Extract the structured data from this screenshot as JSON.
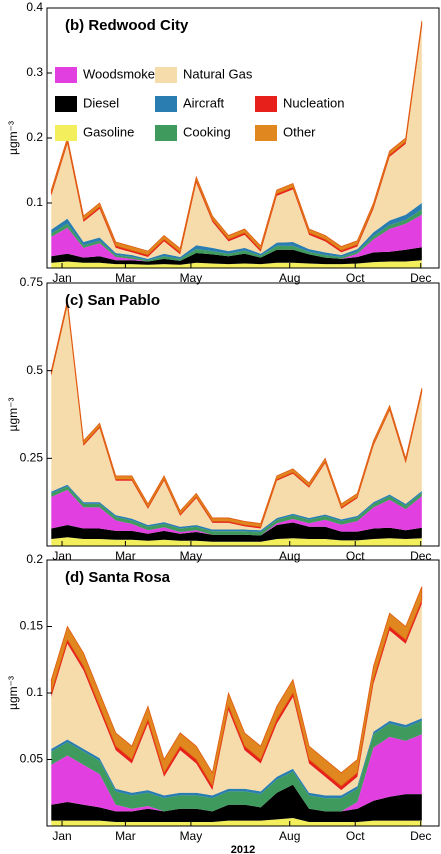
{
  "chart_data": [
    {
      "type": "area",
      "stacked": true,
      "legend": true,
      "title": "(b) Redwood City",
      "ylabel": "µgm⁻³",
      "x": [
        5,
        20,
        35,
        50,
        65,
        80,
        95,
        110,
        125,
        140,
        155,
        170,
        185,
        200,
        215,
        230,
        245,
        260,
        275,
        290,
        305,
        320,
        335,
        350
      ],
      "xlim": [
        1,
        366
      ],
      "xticks": [
        {
          "value": 15,
          "label": "Jan"
        },
        {
          "value": 74,
          "label": "Mar"
        },
        {
          "value": 135,
          "label": "May"
        },
        {
          "value": 227,
          "label": "Aug"
        },
        {
          "value": 288,
          "label": "Oct"
        },
        {
          "value": 349,
          "label": "Dec"
        }
      ],
      "ylim": [
        0,
        0.4
      ],
      "yticks": [
        0.1,
        0.2,
        0.3,
        0.4
      ],
      "series": [
        {
          "name": "Gasoline",
          "color": "#f2ee5c",
          "values": [
            0.008,
            0.01,
            0.008,
            0.008,
            0.006,
            0.006,
            0.005,
            0.006,
            0.005,
            0.008,
            0.007,
            0.006,
            0.007,
            0.006,
            0.008,
            0.008,
            0.007,
            0.006,
            0.006,
            0.007,
            0.009,
            0.01,
            0.01,
            0.012
          ]
        },
        {
          "name": "Diesel",
          "color": "#000000",
          "values": [
            0.01,
            0.012,
            0.008,
            0.01,
            0.006,
            0.006,
            0.005,
            0.008,
            0.006,
            0.015,
            0.014,
            0.012,
            0.015,
            0.01,
            0.02,
            0.02,
            0.014,
            0.01,
            0.008,
            0.01,
            0.015,
            0.015,
            0.018,
            0.02
          ]
        },
        {
          "name": "Woodsmoke",
          "color": "#e23fe0",
          "values": [
            0.03,
            0.04,
            0.015,
            0.02,
            0.005,
            0.002,
            0,
            0,
            0,
            0,
            0,
            0,
            0,
            0,
            0,
            0,
            0,
            0,
            0,
            0.005,
            0.02,
            0.035,
            0.04,
            0.05
          ]
        },
        {
          "name": "Cooking",
          "color": "#3f9a5e",
          "values": [
            0.005,
            0.006,
            0.004,
            0.004,
            0.003,
            0.003,
            0.002,
            0.004,
            0.003,
            0.006,
            0.005,
            0.004,
            0.005,
            0.003,
            0.006,
            0.006,
            0.004,
            0.004,
            0.003,
            0.003,
            0.005,
            0.006,
            0.006,
            0.008
          ]
        },
        {
          "name": "Aircraft",
          "color": "#2a7db0",
          "values": [
            0.006,
            0.008,
            0.005,
            0.005,
            0.003,
            0.003,
            0.002,
            0.004,
            0.003,
            0.006,
            0.005,
            0.004,
            0.004,
            0.003,
            0.005,
            0.006,
            0.004,
            0.004,
            0.003,
            0.004,
            0.006,
            0.007,
            0.008,
            0.01
          ]
        },
        {
          "name": "Natural Gas",
          "color": "#f6dcaa",
          "values": [
            0.052,
            0.115,
            0.031,
            0.044,
            0.008,
            0.004,
            0.003,
            0.019,
            0.004,
            0.096,
            0.04,
            0.015,
            0.02,
            0.003,
            0.072,
            0.081,
            0.022,
            0.017,
            0.004,
            0.004,
            0.036,
            0.098,
            0.109,
            0.271
          ]
        },
        {
          "name": "Nucleation",
          "color": "#e8201c",
          "values": [
            0.003,
            0.003,
            0.003,
            0.003,
            0.003,
            0.003,
            0.003,
            0.003,
            0.003,
            0.003,
            0.003,
            0.003,
            0.003,
            0.003,
            0.003,
            0.003,
            0.003,
            0.003,
            0.003,
            0.003,
            0.003,
            0.003,
            0.003,
            0.003
          ]
        },
        {
          "name": "Other",
          "color": "#e0871f",
          "values": [
            0.006,
            0.006,
            0.006,
            0.006,
            0.006,
            0.006,
            0.006,
            0.006,
            0.006,
            0.006,
            0.006,
            0.006,
            0.006,
            0.006,
            0.006,
            0.006,
            0.006,
            0.006,
            0.006,
            0.006,
            0.006,
            0.006,
            0.006,
            0.006
          ]
        }
      ]
    },
    {
      "type": "area",
      "stacked": true,
      "legend": false,
      "title": "(c) San Pablo",
      "ylabel": "µgm⁻³",
      "x": [
        5,
        20,
        35,
        50,
        65,
        80,
        95,
        110,
        125,
        140,
        155,
        170,
        185,
        200,
        215,
        230,
        245,
        260,
        275,
        290,
        305,
        320,
        335,
        350
      ],
      "xlim": [
        1,
        366
      ],
      "xticks": [
        {
          "value": 15,
          "label": "Jan"
        },
        {
          "value": 74,
          "label": "Mar"
        },
        {
          "value": 135,
          "label": "May"
        },
        {
          "value": 227,
          "label": "Aug"
        },
        {
          "value": 288,
          "label": "Oct"
        },
        {
          "value": 349,
          "label": "Dec"
        }
      ],
      "ylim": [
        0,
        0.75
      ],
      "yticks": [
        0.25,
        0.5,
        0.75
      ],
      "series": [
        {
          "color": "#f2ee5c",
          "values": [
            0.02,
            0.025,
            0.02,
            0.02,
            0.018,
            0.018,
            0.015,
            0.018,
            0.015,
            0.015,
            0.012,
            0.012,
            0.012,
            0.012,
            0.02,
            0.022,
            0.02,
            0.02,
            0.016,
            0.016,
            0.02,
            0.022,
            0.02,
            0.022
          ]
        },
        {
          "color": "#000000",
          "values": [
            0.03,
            0.035,
            0.03,
            0.03,
            0.025,
            0.025,
            0.02,
            0.025,
            0.02,
            0.025,
            0.02,
            0.02,
            0.02,
            0.018,
            0.04,
            0.045,
            0.035,
            0.035,
            0.025,
            0.025,
            0.03,
            0.03,
            0.025,
            0.03
          ]
        },
        {
          "color": "#e23fe0",
          "values": [
            0.09,
            0.1,
            0.06,
            0.06,
            0.03,
            0.02,
            0.01,
            0.01,
            0.005,
            0.005,
            0,
            0,
            0,
            0,
            0.005,
            0.01,
            0.01,
            0.02,
            0.02,
            0.03,
            0.06,
            0.08,
            0.06,
            0.09
          ]
        },
        {
          "color": "#3f9a5e",
          "values": [
            0.01,
            0.01,
            0.01,
            0.01,
            0.01,
            0.01,
            0.01,
            0.01,
            0.01,
            0.01,
            0.01,
            0.01,
            0.01,
            0.01,
            0.01,
            0.01,
            0.01,
            0.01,
            0.01,
            0.01,
            0.01,
            0.01,
            0.01,
            0.01
          ]
        },
        {
          "color": "#2a7db0",
          "values": [
            0.005,
            0.005,
            0.005,
            0.005,
            0.005,
            0.005,
            0.005,
            0.005,
            0.005,
            0.005,
            0.005,
            0.005,
            0.005,
            0.005,
            0.005,
            0.005,
            0.005,
            0.005,
            0.005,
            0.005,
            0.005,
            0.005,
            0.005,
            0.005
          ]
        },
        {
          "color": "#f6dcaa",
          "values": [
            0.331,
            0.511,
            0.161,
            0.211,
            0.098,
            0.108,
            0.046,
            0.118,
            0.031,
            0.076,
            0.019,
            0.019,
            0.009,
            0.005,
            0.106,
            0.114,
            0.086,
            0.146,
            0.03,
            0.05,
            0.161,
            0.239,
            0.116,
            0.279
          ]
        },
        {
          "color": "#e8201c",
          "values": [
            0.004,
            0.004,
            0.004,
            0.004,
            0.004,
            0.004,
            0.004,
            0.004,
            0.004,
            0.004,
            0.004,
            0.004,
            0.004,
            0.004,
            0.004,
            0.004,
            0.004,
            0.004,
            0.004,
            0.004,
            0.004,
            0.004,
            0.004,
            0.004
          ]
        },
        {
          "color": "#e0871f",
          "values": [
            0.01,
            0.01,
            0.01,
            0.01,
            0.01,
            0.01,
            0.01,
            0.01,
            0.01,
            0.01,
            0.01,
            0.01,
            0.01,
            0.01,
            0.01,
            0.01,
            0.01,
            0.01,
            0.01,
            0.01,
            0.01,
            0.01,
            0.01,
            0.01
          ]
        }
      ]
    },
    {
      "type": "area",
      "stacked": true,
      "legend": false,
      "title": "(d) Santa Rosa",
      "ylabel": "µgm⁻³",
      "xlabel": "2012",
      "x": [
        5,
        20,
        35,
        50,
        65,
        80,
        95,
        110,
        125,
        140,
        155,
        170,
        185,
        200,
        215,
        230,
        245,
        260,
        275,
        290,
        305,
        320,
        335,
        350
      ],
      "xlim": [
        1,
        366
      ],
      "xticks": [
        {
          "value": 15,
          "label": "Jan"
        },
        {
          "value": 74,
          "label": "Mar"
        },
        {
          "value": 135,
          "label": "May"
        },
        {
          "value": 227,
          "label": "Aug"
        },
        {
          "value": 288,
          "label": "Oct"
        },
        {
          "value": 349,
          "label": "Dec"
        }
      ],
      "ylim": [
        0,
        0.2
      ],
      "yticks": [
        0.05,
        0.1,
        0.15,
        0.2
      ],
      "series": [
        {
          "color": "#f2ee5c",
          "values": [
            0.004,
            0.004,
            0.004,
            0.004,
            0.003,
            0.003,
            0.003,
            0.003,
            0.003,
            0.003,
            0.003,
            0.004,
            0.004,
            0.004,
            0.005,
            0.006,
            0.003,
            0.003,
            0.003,
            0.003,
            0.004,
            0.004,
            0.004,
            0.004
          ]
        },
        {
          "color": "#000000",
          "values": [
            0.012,
            0.014,
            0.012,
            0.01,
            0.008,
            0.008,
            0.01,
            0.008,
            0.01,
            0.01,
            0.008,
            0.012,
            0.012,
            0.01,
            0.02,
            0.025,
            0.01,
            0.008,
            0.008,
            0.01,
            0.015,
            0.018,
            0.02,
            0.02
          ]
        },
        {
          "color": "#e23fe0",
          "values": [
            0.03,
            0.035,
            0.03,
            0.025,
            0.005,
            0.002,
            0.002,
            0,
            0,
            0,
            0,
            0,
            0,
            0,
            0,
            0,
            0,
            0,
            0,
            0.005,
            0.04,
            0.045,
            0.04,
            0.045
          ]
        },
        {
          "color": "#3f9a5e",
          "values": [
            0.01,
            0.01,
            0.01,
            0.01,
            0.01,
            0.01,
            0.01,
            0.01,
            0.01,
            0.01,
            0.01,
            0.01,
            0.01,
            0.01,
            0.01,
            0.01,
            0.01,
            0.01,
            0.01,
            0.01,
            0.01,
            0.01,
            0.01,
            0.01
          ]
        },
        {
          "color": "#2a7db0",
          "values": [
            0.002,
            0.002,
            0.002,
            0.002,
            0.002,
            0.002,
            0.002,
            0.002,
            0.002,
            0.002,
            0.002,
            0.002,
            0.002,
            0.002,
            0.002,
            0.002,
            0.002,
            0.002,
            0.002,
            0.002,
            0.002,
            0.002,
            0.002,
            0.002
          ]
        },
        {
          "color": "#f6dcaa",
          "values": [
            0.039,
            0.072,
            0.059,
            0.036,
            0.029,
            0.022,
            0.05,
            0.014,
            0.032,
            0.022,
            0.004,
            0.059,
            0.029,
            0.021,
            0.04,
            0.054,
            0.022,
            0.014,
            0.004,
            0.007,
            0.036,
            0.068,
            0.061,
            0.086
          ]
        },
        {
          "color": "#e8201c",
          "values": [
            0.003,
            0.003,
            0.003,
            0.003,
            0.003,
            0.003,
            0.003,
            0.003,
            0.003,
            0.003,
            0.003,
            0.003,
            0.003,
            0.003,
            0.003,
            0.003,
            0.003,
            0.003,
            0.003,
            0.003,
            0.003,
            0.003,
            0.003,
            0.003
          ]
        },
        {
          "color": "#e0871f",
          "values": [
            0.01,
            0.01,
            0.01,
            0.01,
            0.01,
            0.01,
            0.01,
            0.01,
            0.01,
            0.01,
            0.01,
            0.01,
            0.01,
            0.01,
            0.01,
            0.01,
            0.01,
            0.01,
            0.01,
            0.01,
            0.01,
            0.01,
            0.01,
            0.01
          ]
        }
      ]
    }
  ]
}
